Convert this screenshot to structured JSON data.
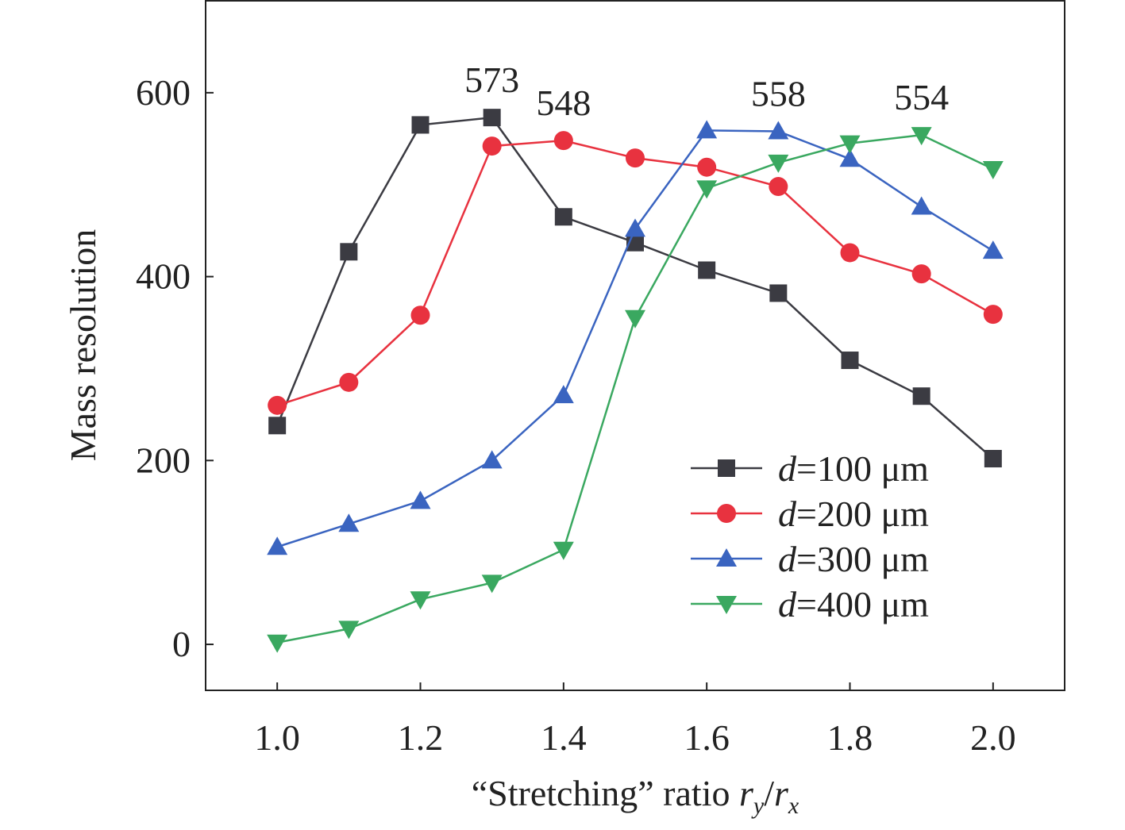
{
  "chart_data": {
    "type": "line",
    "xlabel": "“Stretching” ratio r_y/r_x",
    "xlabel_parts": {
      "prefix": "“Stretching” ratio ",
      "r1": "r",
      "s1": "y",
      "slash": "/",
      "r2": "r",
      "s2": "x"
    },
    "ylabel": "Mass resolution",
    "xlim": [
      0.9,
      2.1
    ],
    "ylim": [
      -50,
      700
    ],
    "xticks": [
      "1.0",
      "1.2",
      "1.4",
      "1.6",
      "1.8",
      "2.0"
    ],
    "yticks": [
      "0",
      "200",
      "400",
      "600"
    ],
    "grid": false,
    "legend_position": "bottom-right",
    "x": [
      1.0,
      1.1,
      1.2,
      1.3,
      1.4,
      1.5,
      1.6,
      1.7,
      1.8,
      1.9,
      2.0
    ],
    "series": [
      {
        "name": "d=100 μm",
        "italic": "d",
        "rest": "=100 μm",
        "color": "#3b3b42",
        "marker": "square",
        "values": [
          238,
          427,
          565,
          573,
          465,
          437,
          407,
          382,
          309,
          270,
          202
        ]
      },
      {
        "name": "d=200 μm",
        "italic": "d",
        "rest": "=200 μm",
        "color": "#e8323f",
        "marker": "circle",
        "values": [
          260,
          285,
          358,
          542,
          548,
          529,
          519,
          498,
          426,
          403,
          359
        ]
      },
      {
        "name": "d=300 μm",
        "italic": "d",
        "rest": "=300 μm",
        "color": "#3a64c0",
        "marker": "triangle-up",
        "values": [
          106,
          131,
          156,
          200,
          271,
          452,
          559,
          558,
          528,
          476,
          428
        ]
      },
      {
        "name": "d=400 μm",
        "italic": "d",
        "rest": "=400 μm",
        "color": "#3aa860",
        "marker": "triangle-down",
        "values": [
          2,
          17,
          49,
          67,
          103,
          355,
          496,
          524,
          545,
          554,
          517
        ]
      }
    ],
    "annotations": [
      {
        "text": "573",
        "x": 1.3,
        "y": 573
      },
      {
        "text": "548",
        "x": 1.4,
        "y": 548
      },
      {
        "text": "558",
        "x": 1.7,
        "y": 558
      },
      {
        "text": "554",
        "x": 1.9,
        "y": 554
      }
    ]
  }
}
